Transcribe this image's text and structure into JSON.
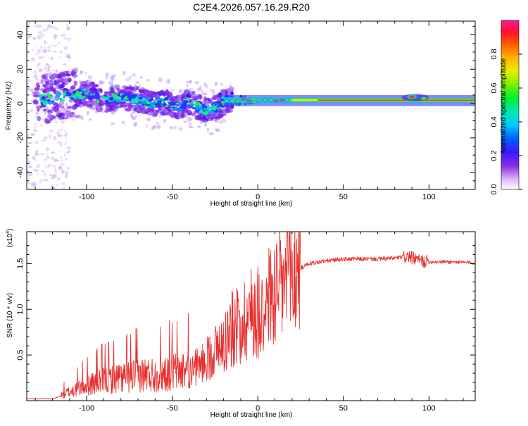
{
  "title": "C2E4.2026.057.16.29.R20",
  "chart_data": [
    {
      "type": "heatmap",
      "name": "spectrogram",
      "xlabel": "Height of straight line (km)",
      "ylabel": "Frequency (Hz)",
      "xlim": [
        -135,
        127
      ],
      "ylim": [
        -50,
        48
      ],
      "xticks": [
        -100,
        -50,
        0,
        50,
        100
      ],
      "xtick_labels": [
        "-100",
        "-50",
        "0",
        "50",
        "100"
      ],
      "yticks": [
        -40,
        -20,
        0,
        20,
        40
      ],
      "ytick_labels": [
        "-40",
        "-20",
        "0",
        "20",
        "40"
      ],
      "ridge": {
        "x": [
          -130,
          -120,
          -110,
          -100,
          -95,
          -90,
          -85,
          -80,
          -75,
          -70,
          -65,
          -60,
          -55,
          -50,
          -45,
          -40,
          -35,
          -30,
          -25,
          -20,
          -15,
          -10,
          -5,
          0,
          10,
          20,
          40,
          60,
          80,
          90,
          100,
          127
        ],
        "y": [
          2,
          3,
          5,
          6,
          4,
          2,
          3,
          4,
          3,
          2,
          1,
          0,
          1,
          -1,
          -2,
          1,
          -2,
          -4,
          -3,
          1,
          2,
          2,
          2,
          1,
          2,
          2,
          2,
          2,
          2,
          4,
          2,
          2
        ]
      }
    },
    {
      "type": "colorbar",
      "name": "amplitude-colorbar",
      "label": "Normalized spectral amplitude",
      "range": [
        0,
        1
      ],
      "ticks": [
        0,
        0.2,
        0.4,
        0.6,
        0.8
      ],
      "tick_labels": [
        "0.0",
        "0.2",
        "0.4",
        "0.6",
        "0.8"
      ]
    },
    {
      "type": "line",
      "name": "snr",
      "xlabel": "Height of straight line (km)",
      "ylabel": "SNR (10 * v/v)",
      "multiplier": "(x10",
      "exponent": "4",
      "multiplier_close": ")",
      "xlim": [
        -135,
        127
      ],
      "ylim": [
        0,
        1.85
      ],
      "xticks": [
        -100,
        -50,
        0,
        50,
        100
      ],
      "xtick_labels": [
        "-100",
        "-50",
        "0",
        "50",
        "100"
      ],
      "yticks": [
        0.5,
        1.0,
        1.5
      ],
      "ytick_labels": [
        "0.5",
        "1.0",
        "1.5"
      ],
      "color": "#e8302e",
      "envelope": {
        "x": [
          -135,
          -120,
          -115,
          -105,
          -100,
          -90,
          -80,
          -70,
          -60,
          -50,
          -40,
          -35,
          -30,
          -25,
          -20,
          -15,
          -10,
          -5,
          0,
          5,
          10,
          15,
          20,
          25,
          30,
          40,
          50,
          60,
          70,
          80,
          88,
          92,
          95,
          100,
          110,
          127
        ],
        "y": [
          0.02,
          0.02,
          0.05,
          0.12,
          0.15,
          0.2,
          0.22,
          0.25,
          0.25,
          0.28,
          0.3,
          0.38,
          0.45,
          0.55,
          0.65,
          0.78,
          0.85,
          0.95,
          1.0,
          1.08,
          1.18,
          1.28,
          1.38,
          1.45,
          1.5,
          1.53,
          1.55,
          1.55,
          1.55,
          1.56,
          1.58,
          1.55,
          1.53,
          1.52,
          1.52,
          1.51
        ]
      }
    }
  ]
}
